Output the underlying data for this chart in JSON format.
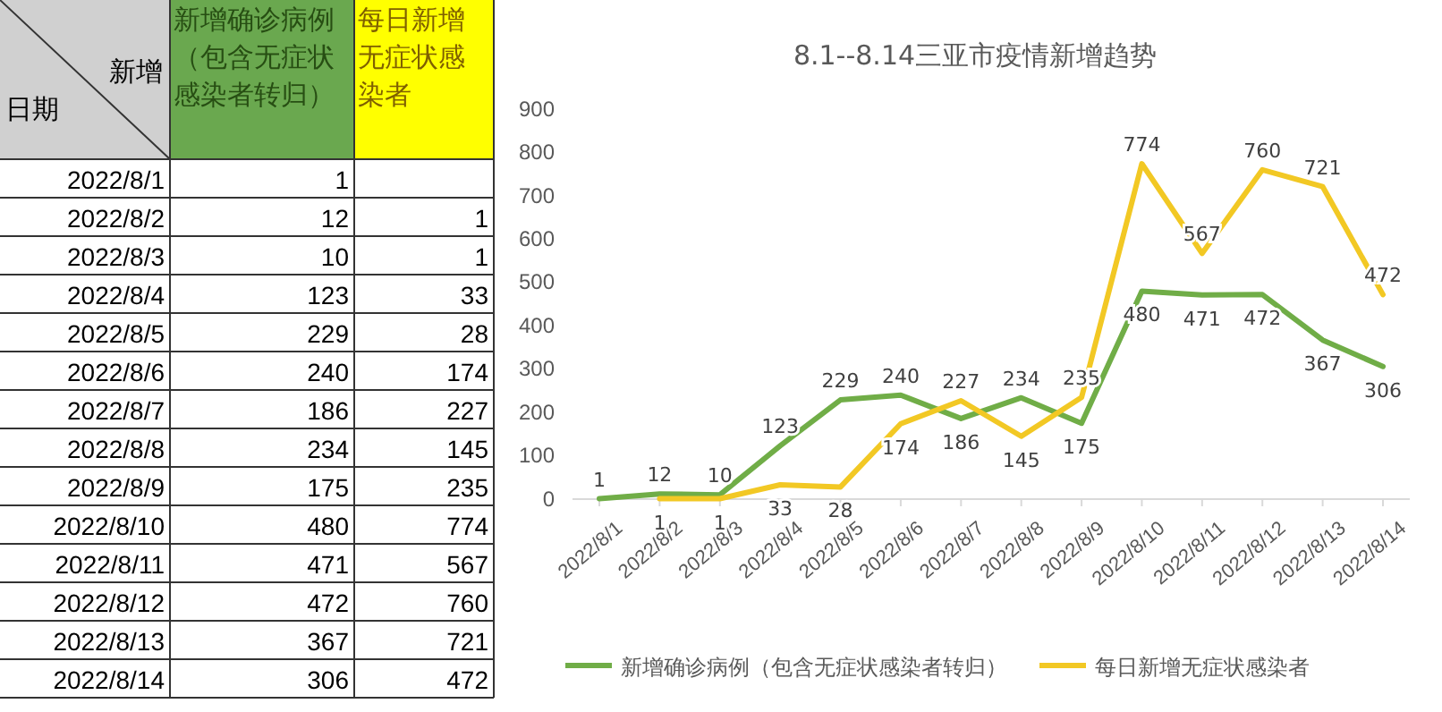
{
  "chart_data": [
    {
      "type": "other",
      "categories": [
        "2022/8/1",
        "2022/8/2",
        "2022/8/3",
        "2022/8/4",
        "2022/8/5",
        "2022/8/6",
        "2022/8/7",
        "2022/8/8",
        "2022/8/9",
        "2022/8/10",
        "2022/8/11",
        "2022/8/12",
        "2022/8/13",
        "2022/8/14"
      ],
      "series": [
        {
          "name": "新增确诊病例（包含无症状感染者转归）",
          "values": [
            1,
            12,
            10,
            123,
            229,
            240,
            186,
            234,
            175,
            480,
            471,
            472,
            367,
            306
          ]
        },
        {
          "name": "每日新增无症状感染者",
          "values": [
            null,
            1,
            1,
            33,
            28,
            174,
            227,
            145,
            235,
            774,
            567,
            760,
            721,
            472
          ]
        }
      ],
      "data_labels": true,
      "annotations": [
        "新增",
        "日期"
      ]
    },
    {
      "type": "line",
      "title": "8.1--8.14三亚市疫情新增趋势",
      "categories": [
        "2022/8/1",
        "2022/8/2",
        "2022/8/3",
        "2022/8/4",
        "2022/8/5",
        "2022/8/6",
        "2022/8/7",
        "2022/8/8",
        "2022/8/9",
        "2022/8/10",
        "2022/8/11",
        "2022/8/12",
        "2022/8/13",
        "2022/8/14"
      ],
      "series": [
        {
          "name": "新增确诊病例（包含无症状感染者转归）",
          "color": "#70ad47",
          "values": [
            1,
            12,
            10,
            123,
            229,
            240,
            186,
            234,
            175,
            480,
            471,
            472,
            367,
            306
          ]
        },
        {
          "name": "每日新增无症状感染者",
          "color": "#f2c824",
          "values": [
            null,
            1,
            1,
            33,
            28,
            174,
            227,
            145,
            235,
            774,
            567,
            760,
            721,
            472
          ]
        }
      ],
      "ylim": [
        0,
        900
      ],
      "yticks": [
        0,
        100,
        200,
        300,
        400,
        500,
        600,
        700,
        800,
        900
      ],
      "grid": false,
      "legend": "bottom",
      "data_labels": true,
      "marker": "none",
      "line_style": "solid"
    }
  ]
}
